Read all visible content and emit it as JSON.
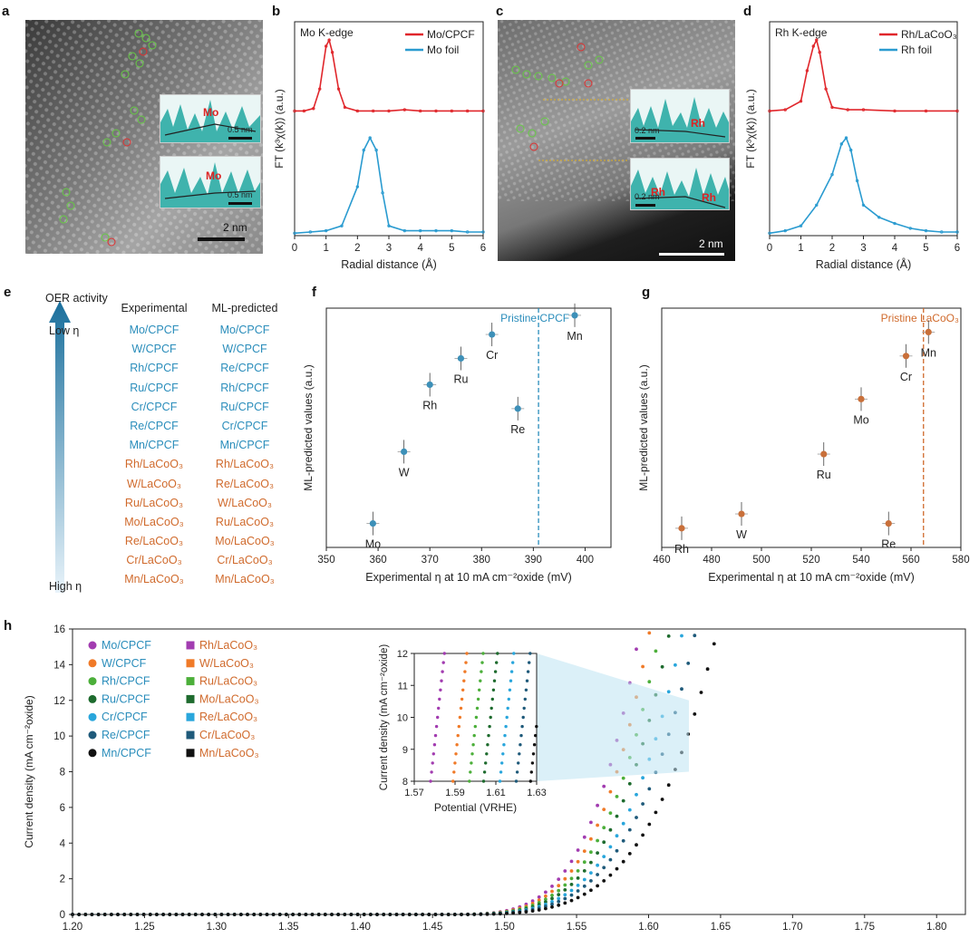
{
  "panels": {
    "a": {
      "letter": "a",
      "scale": "2 nm",
      "inset_label": "Mo",
      "inset_scale": "0.5 nm"
    },
    "b": {
      "letter": "b",
      "edge": "Mo K-edge",
      "legend": [
        "Mo/CPCF",
        "Mo foil"
      ],
      "xlabel": "Radial distance (Å)",
      "ylabel": "FT (k³χ(k)) (a.u.)",
      "xticks": [
        "0",
        "1",
        "2",
        "3",
        "4",
        "5",
        "6"
      ]
    },
    "c": {
      "letter": "c",
      "scale": "2 nm",
      "inset_label": "Rh",
      "inset_scale": "0.2 nm",
      "inset2_label_a": "Rh",
      "inset2_label_b": "Rh"
    },
    "d": {
      "letter": "d",
      "edge": "Rh K-edge",
      "legend": [
        "Rh/LaCoO₃",
        "Rh foil"
      ],
      "xlabel": "Radial distance (Å)",
      "ylabel": "FT (k³χ(k)) (a.u.)",
      "xticks": [
        "0",
        "1",
        "2",
        "3",
        "4",
        "5",
        "6"
      ]
    },
    "e": {
      "letter": "e",
      "axis_title": "OER activity",
      "top": "Low η",
      "bottom": "High η",
      "col1_head": "Experimental",
      "col2_head": "ML-predicted",
      "experimental": [
        "Mo/CPCF",
        "W/CPCF",
        "Rh/CPCF",
        "Ru/CPCF",
        "Cr/CPCF",
        "Re/CPCF",
        "Mn/CPCF",
        "Rh/LaCoO₃",
        "W/LaCoO₃",
        "Ru/LaCoO₃",
        "Mo/LaCoO₃",
        "Re/LaCoO₃",
        "Cr/LaCoO₃",
        "Mn/LaCoO₃"
      ],
      "predicted": [
        "Mo/CPCF",
        "W/CPCF",
        "Re/CPCF",
        "Rh/CPCF",
        "Ru/CPCF",
        "Cr/CPCF",
        "Mn/CPCF",
        "Rh/LaCoO₃",
        "Re/LaCoO₃",
        "W/LaCoO₃",
        "Ru/LaCoO₃",
        "Mo/LaCoO₃",
        "Cr/LaCoO₃",
        "Mn/LaCoO₃"
      ]
    },
    "f": {
      "letter": "f",
      "ref_label": "Pristine CPCF",
      "xlabel": "Experimental η at 10 mA cm⁻²oxide (mV)",
      "ylabel": "ML-predicted values (a.u.)",
      "xticks": [
        "350",
        "360",
        "370",
        "380",
        "390",
        "400"
      ]
    },
    "g": {
      "letter": "g",
      "ref_label": "Pristine LaCoO₃",
      "xlabel": "Experimental η at 10 mA cm⁻²oxide (mV)",
      "ylabel": "ML-predicted values (a.u.)",
      "xticks": [
        "460",
        "480",
        "500",
        "520",
        "540",
        "560",
        "580"
      ]
    },
    "h": {
      "letter": "h",
      "ylabel": "Current density (mA cm⁻²oxide)",
      "inset_xlabel": "Potential (VRHE)",
      "inset_ylabel": "Current density (mA cm⁻²oxide)",
      "yticks": [
        "0",
        "2",
        "4",
        "6",
        "8",
        "10",
        "12",
        "14",
        "16"
      ],
      "xticks": [
        "1.20",
        "1.25",
        "1.30",
        "1.35",
        "1.40",
        "1.45",
        "1.50",
        "1.55",
        "1.60",
        "1.65",
        "1.70",
        "1.75",
        "1.80"
      ],
      "inset_xticks": [
        "1.57",
        "1.59",
        "1.61",
        "1.63"
      ],
      "inset_yticks": [
        "8",
        "9",
        "10",
        "11",
        "12"
      ]
    }
  },
  "chart_data": [
    {
      "type": "line",
      "panel": "b",
      "title": "Mo K-edge",
      "xlabel": "Radial distance (Å)",
      "ylabel": "FT (k³χ(k)) (a.u.)",
      "xlim": [
        0,
        6
      ],
      "series": [
        {
          "name": "Mo/CPCF",
          "color": "#e0262b",
          "x": [
            0,
            0.3,
            0.6,
            0.8,
            1.0,
            1.1,
            1.2,
            1.4,
            1.6,
            2.0,
            2.5,
            3.0,
            3.5,
            4.0,
            4.5,
            5.0,
            5.5,
            6.0
          ],
          "y": [
            1.02,
            1.02,
            1.04,
            1.2,
            1.55,
            1.6,
            1.5,
            1.2,
            1.05,
            1.02,
            1.02,
            1.02,
            1.03,
            1.02,
            1.02,
            1.02,
            1.02,
            1.02
          ]
        },
        {
          "name": "Mo foil",
          "color": "#2a9bd0",
          "x": [
            0,
            0.5,
            1.0,
            1.5,
            2.0,
            2.2,
            2.4,
            2.6,
            2.8,
            3.0,
            3.5,
            4.0,
            4.5,
            5.0,
            5.5,
            6.0
          ],
          "y": [
            0.02,
            0.03,
            0.04,
            0.08,
            0.4,
            0.7,
            0.8,
            0.7,
            0.35,
            0.08,
            0.04,
            0.04,
            0.04,
            0.04,
            0.03,
            0.03
          ]
        }
      ]
    },
    {
      "type": "line",
      "panel": "d",
      "title": "Rh K-edge",
      "xlabel": "Radial distance (Å)",
      "ylabel": "FT (k³χ(k)) (a.u.)",
      "xlim": [
        0,
        6
      ],
      "series": [
        {
          "name": "Rh/LaCoO₃",
          "color": "#e0262b",
          "x": [
            0,
            0.5,
            1.0,
            1.2,
            1.4,
            1.5,
            1.6,
            1.8,
            2.0,
            2.5,
            3.0,
            4.0,
            5.0,
            6.0
          ],
          "y": [
            1.02,
            1.03,
            1.1,
            1.35,
            1.55,
            1.6,
            1.5,
            1.2,
            1.05,
            1.03,
            1.03,
            1.02,
            1.02,
            1.02
          ]
        },
        {
          "name": "Rh foil",
          "color": "#2a9bd0",
          "x": [
            0,
            0.5,
            1.0,
            1.5,
            2.0,
            2.3,
            2.45,
            2.6,
            2.8,
            3.0,
            3.5,
            4.0,
            4.5,
            5.0,
            5.5,
            6.0
          ],
          "y": [
            0.02,
            0.04,
            0.08,
            0.25,
            0.5,
            0.75,
            0.8,
            0.7,
            0.45,
            0.25,
            0.15,
            0.1,
            0.06,
            0.04,
            0.03,
            0.03
          ]
        }
      ]
    },
    {
      "type": "scatter",
      "panel": "f",
      "xlabel": "Experimental η at 10 mA cm⁻²oxide (mV)",
      "ylabel": "ML-predicted values (a.u.)",
      "xlim": [
        350,
        405
      ],
      "reference_x": 391,
      "points": [
        {
          "label": "Mo",
          "x": 359,
          "y": 0.1
        },
        {
          "label": "W",
          "x": 365,
          "y": 0.4
        },
        {
          "label": "Rh",
          "x": 370,
          "y": 0.68
        },
        {
          "label": "Ru",
          "x": 376,
          "y": 0.79
        },
        {
          "label": "Cr",
          "x": 382,
          "y": 0.89
        },
        {
          "label": "Re",
          "x": 387,
          "y": 0.58
        },
        {
          "label": "Mn",
          "x": 398,
          "y": 0.97
        }
      ]
    },
    {
      "type": "scatter",
      "panel": "g",
      "xlabel": "Experimental η at 10 mA cm⁻²oxide (mV)",
      "ylabel": "ML-predicted values (a.u.)",
      "xlim": [
        460,
        580
      ],
      "reference_x": 565,
      "points": [
        {
          "label": "Rh",
          "x": 468,
          "y": 0.08
        },
        {
          "label": "W",
          "x": 492,
          "y": 0.14
        },
        {
          "label": "Ru",
          "x": 525,
          "y": 0.39
        },
        {
          "label": "Mo",
          "x": 540,
          "y": 0.62
        },
        {
          "label": "Re",
          "x": 551,
          "y": 0.1
        },
        {
          "label": "Cr",
          "x": 558,
          "y": 0.8
        },
        {
          "label": "Mn",
          "x": 567,
          "y": 0.9
        }
      ]
    },
    {
      "type": "scatter",
      "panel": "h",
      "ylabel": "Current density (mA cm⁻²oxide)",
      "xlim": [
        1.2,
        1.82
      ],
      "ylim": [
        0,
        16
      ],
      "series": [
        {
          "name": "Mo/CPCF",
          "marker": "circle",
          "color": "#a23cb0",
          "onset": 1.594
        },
        {
          "name": "W/CPCF",
          "marker": "circle",
          "color": "#f07a28",
          "onset": 1.601
        },
        {
          "name": "Rh/CPCF",
          "marker": "circle",
          "color": "#4caf3a",
          "onset": 1.608
        },
        {
          "name": "Ru/CPCF",
          "marker": "circle",
          "color": "#1e6b2e",
          "onset": 1.615
        },
        {
          "name": "Cr/CPCF",
          "marker": "circle",
          "color": "#29a6dc",
          "onset": 1.624
        },
        {
          "name": "Re/CPCF",
          "marker": "circle",
          "color": "#1f5a7a",
          "onset": 1.633
        },
        {
          "name": "Mn/CPCF",
          "marker": "circle",
          "color": "#111111",
          "onset": 1.648
        },
        {
          "name": "Rh/LaCoO₃",
          "marker": "square",
          "color": "#a23cb0"
        },
        {
          "name": "W/LaCoO₃",
          "marker": "square",
          "color": "#f07a28"
        },
        {
          "name": "Ru/LaCoO₃",
          "marker": "square",
          "color": "#4caf3a"
        },
        {
          "name": "Mo/LaCoO₃",
          "marker": "square",
          "color": "#1e6b2e"
        },
        {
          "name": "Re/LaCoO₃",
          "marker": "square",
          "color": "#29a6dc"
        },
        {
          "name": "Cr/LaCoO₃",
          "marker": "square",
          "color": "#1f5a7a"
        },
        {
          "name": "Mn/LaCoO₃",
          "marker": "square",
          "color": "#111111"
        }
      ]
    }
  ]
}
